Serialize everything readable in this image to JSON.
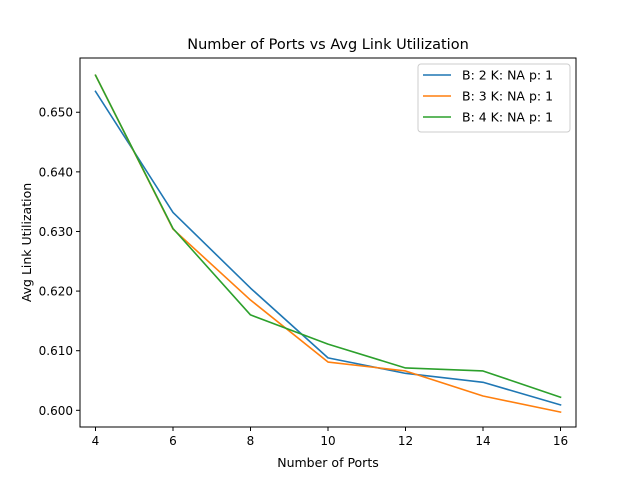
{
  "chart_data": {
    "type": "line",
    "title": "Number of Ports vs Avg Link Utilization",
    "xlabel": "Number of Ports",
    "ylabel": "Avg Link Utilization",
    "x": [
      4,
      6,
      8,
      10,
      12,
      14,
      16
    ],
    "xlim": [
      3.6,
      16.4
    ],
    "ylim": [
      0.5972,
      0.6591
    ],
    "xticks": [
      4,
      6,
      8,
      10,
      12,
      14,
      16
    ],
    "xtick_labels": [
      "4",
      "6",
      "8",
      "10",
      "12",
      "14",
      "16"
    ],
    "yticks": [
      0.6,
      0.61,
      0.62,
      0.63,
      0.64,
      0.65
    ],
    "ytick_labels": [
      "0.600",
      "0.610",
      "0.620",
      "0.630",
      "0.640",
      "0.650"
    ],
    "grid": false,
    "legend_position": "top-right",
    "series": [
      {
        "name": "B: 2 K: NA p: 1",
        "color": "#1f77b4",
        "values": [
          0.6535,
          0.6332,
          0.6205,
          0.6088,
          0.6062,
          0.6047,
          0.6009
        ]
      },
      {
        "name": "B: 3 K: NA p: 1",
        "color": "#ff7f0e",
        "values": [
          0.6562,
          0.6304,
          0.6185,
          0.6081,
          0.6066,
          0.6024,
          0.5997
        ]
      },
      {
        "name": "B: 4 K: NA p: 1",
        "color": "#2ca02c",
        "values": [
          0.6562,
          0.6305,
          0.616,
          0.6111,
          0.6071,
          0.6066,
          0.6022
        ]
      }
    ]
  }
}
